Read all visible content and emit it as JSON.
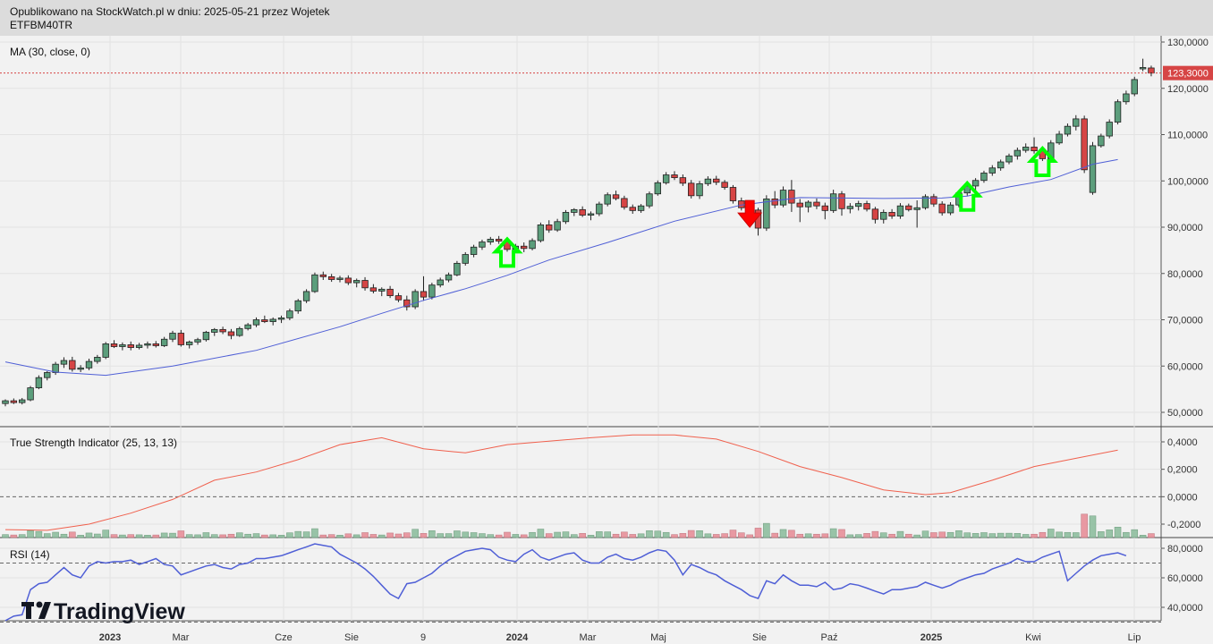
{
  "header": {
    "line1": "Opublikowano na StockWatch.pl w dniu: 2025-05-21 przez Wojetek",
    "line2": "ETFBM40TR"
  },
  "branding": {
    "name": "TradingView"
  },
  "colors": {
    "up": "#5c9e7c",
    "down": "#d64545",
    "ma": "#4f5fd6",
    "tsi": "#f0604d",
    "rsi": "#4f5fd6",
    "arrow_up": "#00ff00",
    "arrow_down": "#ff0000",
    "price_label": "#d64545"
  },
  "chart_data": [
    {
      "type": "candlestick",
      "title": "MA (30, close, 0)",
      "current_price_label": "123,3000",
      "current_price": 123.3,
      "y_ticks": [
        "130,0000",
        "120,0000",
        "110,0000",
        "100,0000",
        "90,0000",
        "80,0000",
        "70,0000",
        "60,0000",
        "50,0000"
      ],
      "y_range": [
        48,
        131
      ],
      "x_ticks": [
        "2023",
        "Mar",
        "Cze",
        "Sie",
        "9",
        "2024",
        "Mar",
        "Maj",
        "Sie",
        "Paź",
        "2025",
        "Kwi",
        "Lip"
      ],
      "candles": [
        [
          51.9,
          52.8,
          51.3,
          52.5
        ],
        [
          52.5,
          53.0,
          51.8,
          52.1
        ],
        [
          52.1,
          53.1,
          51.7,
          52.7
        ],
        [
          52.7,
          55.7,
          52.4,
          55.3
        ],
        [
          55.3,
          58.0,
          55.0,
          57.5
        ],
        [
          57.5,
          58.9,
          56.9,
          58.6
        ],
        [
          58.6,
          60.9,
          58.1,
          60.4
        ],
        [
          60.4,
          61.9,
          59.6,
          61.2
        ],
        [
          61.2,
          62.0,
          58.8,
          59.3
        ],
        [
          59.3,
          60.2,
          58.7,
          59.6
        ],
        [
          59.6,
          61.6,
          59.1,
          61.0
        ],
        [
          61.0,
          62.4,
          60.5,
          61.9
        ],
        [
          61.9,
          65.2,
          61.5,
          64.8
        ],
        [
          64.8,
          65.6,
          63.9,
          64.2
        ],
        [
          64.2,
          65.1,
          63.4,
          64.6
        ],
        [
          64.6,
          65.3,
          63.4,
          64.0
        ],
        [
          64.0,
          65.0,
          63.6,
          64.5
        ],
        [
          64.5,
          65.3,
          63.8,
          64.8
        ],
        [
          64.8,
          65.4,
          64.0,
          64.4
        ],
        [
          64.4,
          66.3,
          64.1,
          65.8
        ],
        [
          65.8,
          67.6,
          65.2,
          67.1
        ],
        [
          67.1,
          67.8,
          64.2,
          64.6
        ],
        [
          64.6,
          65.5,
          63.8,
          65.2
        ],
        [
          65.2,
          66.1,
          64.6,
          65.7
        ],
        [
          65.7,
          67.6,
          65.3,
          67.3
        ],
        [
          67.3,
          68.2,
          66.5,
          67.9
        ],
        [
          67.9,
          68.5,
          66.9,
          67.4
        ],
        [
          67.4,
          68.0,
          65.8,
          66.6
        ],
        [
          66.6,
          68.5,
          66.3,
          68.1
        ],
        [
          68.1,
          69.3,
          67.7,
          68.9
        ],
        [
          68.9,
          70.5,
          68.4,
          70.0
        ],
        [
          70.0,
          70.9,
          69.3,
          69.6
        ],
        [
          69.6,
          70.5,
          68.8,
          70.1
        ],
        [
          70.1,
          70.9,
          69.3,
          70.4
        ],
        [
          70.4,
          72.4,
          69.9,
          71.9
        ],
        [
          71.9,
          74.5,
          71.3,
          74.1
        ],
        [
          74.1,
          76.6,
          73.6,
          76.1
        ],
        [
          76.1,
          80.2,
          75.8,
          79.7
        ],
        [
          79.7,
          80.4,
          78.6,
          79.3
        ],
        [
          79.3,
          79.9,
          78.2,
          78.7
        ],
        [
          78.7,
          79.5,
          78.1,
          79.0
        ],
        [
          79.0,
          79.6,
          77.5,
          78.0
        ],
        [
          78.0,
          78.9,
          77.0,
          78.5
        ],
        [
          78.5,
          79.2,
          76.3,
          76.9
        ],
        [
          76.9,
          77.7,
          75.7,
          76.2
        ],
        [
          76.2,
          77.0,
          75.1,
          76.6
        ],
        [
          76.6,
          77.3,
          74.7,
          75.2
        ],
        [
          75.2,
          75.8,
          73.8,
          74.3
        ],
        [
          74.3,
          75.2,
          72.0,
          72.8
        ],
        [
          72.8,
          76.6,
          72.3,
          76.1
        ],
        [
          76.1,
          79.4,
          74.1,
          74.9
        ],
        [
          74.9,
          78.0,
          74.4,
          77.5
        ],
        [
          77.5,
          79.1,
          77.0,
          78.6
        ],
        [
          78.6,
          80.2,
          78.1,
          79.7
        ],
        [
          79.7,
          82.7,
          79.4,
          82.2
        ],
        [
          82.2,
          84.6,
          81.7,
          84.1
        ],
        [
          84.1,
          86.2,
          83.5,
          85.7
        ],
        [
          85.7,
          87.3,
          85.1,
          86.8
        ],
        [
          86.8,
          87.9,
          86.2,
          87.4
        ],
        [
          87.4,
          88.1,
          86.4,
          87.0
        ],
        [
          87.0,
          87.7,
          84.7,
          85.2
        ],
        [
          85.2,
          86.4,
          84.6,
          85.9
        ],
        [
          85.9,
          86.7,
          84.6,
          85.4
        ],
        [
          85.4,
          87.6,
          85.0,
          87.1
        ],
        [
          87.1,
          91.0,
          86.7,
          90.5
        ],
        [
          90.5,
          91.5,
          88.8,
          89.4
        ],
        [
          89.4,
          91.8,
          89.0,
          91.2
        ],
        [
          91.2,
          93.7,
          90.7,
          93.2
        ],
        [
          93.2,
          94.1,
          92.4,
          93.8
        ],
        [
          93.8,
          94.5,
          92.2,
          92.6
        ],
        [
          92.6,
          93.4,
          91.5,
          92.9
        ],
        [
          92.9,
          95.5,
          92.4,
          95.0
        ],
        [
          95.0,
          97.5,
          94.5,
          97.0
        ],
        [
          97.0,
          97.9,
          95.8,
          96.2
        ],
        [
          96.2,
          96.8,
          93.8,
          94.3
        ],
        [
          94.3,
          94.9,
          92.9,
          93.6
        ],
        [
          93.6,
          95.0,
          93.1,
          94.6
        ],
        [
          94.6,
          97.7,
          94.1,
          97.2
        ],
        [
          97.2,
          100.1,
          96.8,
          99.6
        ],
        [
          99.6,
          101.9,
          99.2,
          101.3
        ],
        [
          101.3,
          102.1,
          100.2,
          100.7
        ],
        [
          100.7,
          101.4,
          98.9,
          99.5
        ],
        [
          99.5,
          100.2,
          96.2,
          96.8
        ],
        [
          96.8,
          100.0,
          96.1,
          99.4
        ],
        [
          99.4,
          101.0,
          98.9,
          100.4
        ],
        [
          100.4,
          101.1,
          99.1,
          99.7
        ],
        [
          99.7,
          100.2,
          98.1,
          98.6
        ],
        [
          98.6,
          99.1,
          95.1,
          95.7
        ],
        [
          95.7,
          96.4,
          93.6,
          94.2
        ],
        [
          94.2,
          95.0,
          92.9,
          93.7
        ],
        [
          93.7,
          94.2,
          88.2,
          89.8
        ],
        [
          89.8,
          96.9,
          89.2,
          96.1
        ],
        [
          96.1,
          97.8,
          94.1,
          94.8
        ],
        [
          94.8,
          98.8,
          94.3,
          98.0
        ],
        [
          98.0,
          100.2,
          93.3,
          95.2
        ],
        [
          95.2,
          96.1,
          91.1,
          94.4
        ],
        [
          94.4,
          95.8,
          93.2,
          95.4
        ],
        [
          95.4,
          96.2,
          93.9,
          94.6
        ],
        [
          94.6,
          95.3,
          91.7,
          93.6
        ],
        [
          93.6,
          98.1,
          93.1,
          97.2
        ],
        [
          97.2,
          97.8,
          92.5,
          94.0
        ],
        [
          94.0,
          95.2,
          93.0,
          94.5
        ],
        [
          94.5,
          95.7,
          93.6,
          95.1
        ],
        [
          95.1,
          95.7,
          93.4,
          93.9
        ],
        [
          93.9,
          94.4,
          90.8,
          91.7
        ],
        [
          91.7,
          93.8,
          90.8,
          93.2
        ],
        [
          93.2,
          93.9,
          91.8,
          92.4
        ],
        [
          92.4,
          95.2,
          91.8,
          94.6
        ],
        [
          94.6,
          95.1,
          93.4,
          93.8
        ],
        [
          93.8,
          95.8,
          89.9,
          94.2
        ],
        [
          94.2,
          97.1,
          93.8,
          96.6
        ],
        [
          96.6,
          97.2,
          94.4,
          95.0
        ],
        [
          95.0,
          95.6,
          92.5,
          93.1
        ],
        [
          93.1,
          95.4,
          92.6,
          94.8
        ],
        [
          94.8,
          97.9,
          94.3,
          97.4
        ],
        [
          97.4,
          99.3,
          96.8,
          98.9
        ],
        [
          98.9,
          100.6,
          97.3,
          100.1
        ],
        [
          100.1,
          102.2,
          99.6,
          101.7
        ],
        [
          101.7,
          103.4,
          101.1,
          102.8
        ],
        [
          102.8,
          104.6,
          102.2,
          104.1
        ],
        [
          104.1,
          105.9,
          103.6,
          105.4
        ],
        [
          105.4,
          107.2,
          104.6,
          106.6
        ],
        [
          106.6,
          108.1,
          106.1,
          107.3
        ],
        [
          107.3,
          109.4,
          105.9,
          106.5
        ],
        [
          106.5,
          107.2,
          104.3,
          104.8
        ],
        [
          104.8,
          108.8,
          104.4,
          108.2
        ],
        [
          108.2,
          110.8,
          107.8,
          110.1
        ],
        [
          110.1,
          112.4,
          109.6,
          111.8
        ],
        [
          111.8,
          114.2,
          110.9,
          113.4
        ],
        [
          113.4,
          114.1,
          101.7,
          102.4
        ],
        [
          97.5,
          108.4,
          97.0,
          107.6
        ],
        [
          107.6,
          110.2,
          107.2,
          109.7
        ],
        [
          109.7,
          113.3,
          109.2,
          112.7
        ],
        [
          112.7,
          117.6,
          112.2,
          117.1
        ],
        [
          117.1,
          119.5,
          116.5,
          118.8
        ],
        [
          118.8,
          122.5,
          118.3,
          121.9
        ],
        [
          124.2,
          126.4,
          123.7,
          124.5
        ],
        [
          124.4,
          124.9,
          122.6,
          123.3
        ]
      ],
      "ma_series": {
        "name": "MA (30, close, 0)",
        "points": [
          [
            0,
            60.9
          ],
          [
            6,
            58.7
          ],
          [
            12,
            58.0
          ],
          [
            20,
            60.0
          ],
          [
            30,
            63.4
          ],
          [
            40,
            68.5
          ],
          [
            45,
            71.4
          ],
          [
            50,
            74.2
          ],
          [
            55,
            76.7
          ],
          [
            60,
            79.6
          ],
          [
            65,
            82.9
          ],
          [
            72,
            86.7
          ],
          [
            80,
            91.3
          ],
          [
            88,
            94.8
          ],
          [
            95,
            96.4
          ],
          [
            105,
            96.2
          ],
          [
            112,
            96.3
          ],
          [
            115,
            96.7
          ],
          [
            120,
            98.7
          ],
          [
            125,
            100.3
          ],
          [
            130,
            103.6
          ],
          [
            133,
            104.6
          ]
        ]
      },
      "markers": [
        {
          "type": "up",
          "candle": 60
        },
        {
          "type": "down",
          "candle": 89
        },
        {
          "type": "up",
          "candle": 115
        },
        {
          "type": "up",
          "candle": 124
        }
      ]
    },
    {
      "type": "line",
      "title": "True Strength Indicator (25, 13, 13)",
      "y_ticks": [
        "0,4000",
        "0,2000",
        "0,0000",
        "-0,2000"
      ],
      "y_range": [
        -0.27,
        0.44
      ],
      "zero_line": 0.0,
      "series": [
        {
          "name": "True Strength Indicator (25, 13, 13)",
          "points": [
            [
              0,
              -0.24
            ],
            [
              5,
              -0.245
            ],
            [
              10,
              -0.2
            ],
            [
              15,
              -0.12
            ],
            [
              20,
              -0.02
            ],
            [
              25,
              0.12
            ],
            [
              30,
              0.18
            ],
            [
              35,
              0.27
            ],
            [
              40,
              0.38
            ],
            [
              45,
              0.43
            ],
            [
              50,
              0.35
            ],
            [
              55,
              0.32
            ],
            [
              60,
              0.38
            ],
            [
              70,
              0.43
            ],
            [
              75,
              0.45
            ],
            [
              80,
              0.45
            ],
            [
              85,
              0.42
            ],
            [
              90,
              0.33
            ],
            [
              95,
              0.22
            ],
            [
              100,
              0.14
            ],
            [
              105,
              0.05
            ],
            [
              110,
              0.015
            ],
            [
              113,
              0.03
            ],
            [
              118,
              0.12
            ],
            [
              123,
              0.22
            ],
            [
              128,
              0.28
            ],
            [
              133,
              0.34
            ]
          ]
        }
      ],
      "histogram_shading": "lightblue"
    },
    {
      "type": "line",
      "title": "RSI (14)",
      "y_ticks": [
        "80,0000",
        "60,0000",
        "40,0000"
      ],
      "y_range": [
        28,
        88
      ],
      "levels": [
        70,
        30
      ],
      "series": [
        {
          "name": "RSI (14)",
          "values": [
            31,
            34,
            35,
            52,
            56,
            57,
            62,
            67,
            62,
            60,
            68,
            71,
            70,
            71,
            71,
            72,
            69,
            71,
            73,
            69,
            68,
            62,
            64,
            66,
            68,
            69,
            67,
            66,
            69,
            70,
            73,
            73,
            74,
            75,
            77,
            79,
            81,
            83,
            82,
            81,
            76,
            73,
            70,
            66,
            61,
            55,
            49,
            46,
            56,
            57,
            60,
            63,
            68,
            72,
            75,
            78,
            79,
            80,
            79,
            74,
            72,
            71,
            76,
            79,
            74,
            72,
            74,
            76,
            77,
            72,
            70,
            70,
            74,
            76,
            73,
            72,
            74,
            77,
            79,
            78,
            72,
            62,
            69,
            67,
            64,
            62,
            58,
            55,
            52,
            48,
            46,
            58,
            56,
            62,
            58,
            55,
            55,
            54,
            57,
            52,
            53,
            56,
            55,
            53,
            51,
            49,
            52,
            52,
            53,
            54,
            57,
            55,
            53,
            55,
            58,
            60,
            62,
            63,
            66,
            68,
            70,
            73,
            71,
            71,
            74,
            76,
            78,
            58,
            63,
            68,
            72,
            75,
            76,
            77,
            75
          ]
        }
      ]
    }
  ]
}
